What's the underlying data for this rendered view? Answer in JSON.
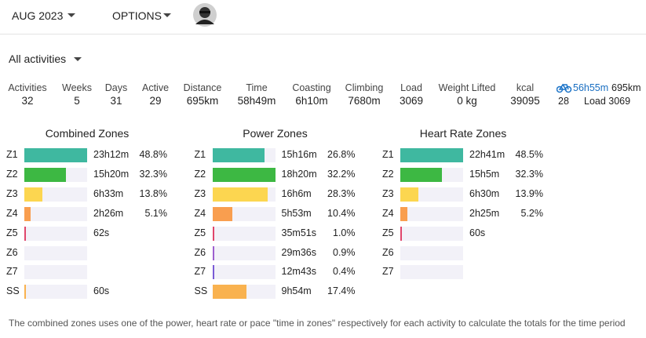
{
  "header": {
    "month": "AUG 2023",
    "options": "OPTIONS"
  },
  "filter": "All activities",
  "stats": [
    {
      "label": "Activities",
      "value": "32"
    },
    {
      "label": "Weeks",
      "value": "5"
    },
    {
      "label": "Days",
      "value": "31"
    },
    {
      "label": "Active",
      "value": "29"
    },
    {
      "label": "Distance",
      "value": "695km"
    },
    {
      "label": "Time",
      "value": "58h49m"
    },
    {
      "label": "Coasting",
      "value": "6h10m"
    },
    {
      "label": "Climbing",
      "value": "7680m"
    },
    {
      "label": "Load",
      "value": "3069"
    },
    {
      "label": "Weight Lifted",
      "value": "0 kg"
    },
    {
      "label": "kcal",
      "value": "39095"
    }
  ],
  "side": {
    "time": "56h55m",
    "distance": "695km",
    "count": "28",
    "load": "Load 3069"
  },
  "zone_colors": {
    "Z1": "#3fb8a0",
    "Z2": "#3db843",
    "Z3": "#fcd650",
    "Z4": "#f99e4f",
    "Z5": "#e0466c",
    "Z6": "#9d5fcf",
    "Z7": "#7a5bd6",
    "SS": "#f9b24f"
  },
  "panels": [
    {
      "title": "Combined Zones",
      "rows": [
        {
          "zone": "Z1",
          "time": "23h12m",
          "pct": 48.8,
          "pct_label": "48.8%"
        },
        {
          "zone": "Z2",
          "time": "15h20m",
          "pct": 32.3,
          "pct_label": "32.3%"
        },
        {
          "zone": "Z3",
          "time": "6h33m",
          "pct": 13.8,
          "pct_label": "13.8%"
        },
        {
          "zone": "Z4",
          "time": "2h26m",
          "pct": 5.1,
          "pct_label": "5.1%"
        },
        {
          "zone": "Z5",
          "time": "62s"
        },
        {
          "zone": "Z6"
        },
        {
          "zone": "Z7"
        },
        {
          "zone": "SS",
          "time": "60s"
        }
      ]
    },
    {
      "title": "Power Zones",
      "rows": [
        {
          "zone": "Z1",
          "time": "15h16m",
          "pct": 26.8,
          "pct_label": "26.8%"
        },
        {
          "zone": "Z2",
          "time": "18h20m",
          "pct": 32.2,
          "pct_label": "32.2%"
        },
        {
          "zone": "Z3",
          "time": "16h6m",
          "pct": 28.3,
          "pct_label": "28.3%"
        },
        {
          "zone": "Z4",
          "time": "5h53m",
          "pct": 10.4,
          "pct_label": "10.4%"
        },
        {
          "zone": "Z5",
          "time": "35m51s",
          "pct": 1,
          "pct_label": "1.0%"
        },
        {
          "zone": "Z6",
          "time": "29m36s",
          "pct": 0.9,
          "pct_label": "0.9%"
        },
        {
          "zone": "Z7",
          "time": "12m43s",
          "pct": 0.4,
          "pct_label": "0.4%"
        },
        {
          "zone": "SS",
          "time": "9h54m",
          "pct": 17.4,
          "pct_label": "17.4%"
        }
      ]
    },
    {
      "title": "Heart Rate Zones",
      "rows": [
        {
          "zone": "Z1",
          "time": "22h41m",
          "pct": 48.5,
          "pct_label": "48.5%"
        },
        {
          "zone": "Z2",
          "time": "15h5m",
          "pct": 32.3,
          "pct_label": "32.3%"
        },
        {
          "zone": "Z3",
          "time": "6h30m",
          "pct": 13.9,
          "pct_label": "13.9%"
        },
        {
          "zone": "Z4",
          "time": "2h25m",
          "pct": 5.2,
          "pct_label": "5.2%"
        },
        {
          "zone": "Z5",
          "time": "60s"
        },
        {
          "zone": "Z6"
        },
        {
          "zone": "Z7"
        }
      ]
    }
  ],
  "footnote": "The combined zones uses one of the power, heart rate or pace \"time in zones\" respectively for each activity to calculate the totals for the time period"
}
